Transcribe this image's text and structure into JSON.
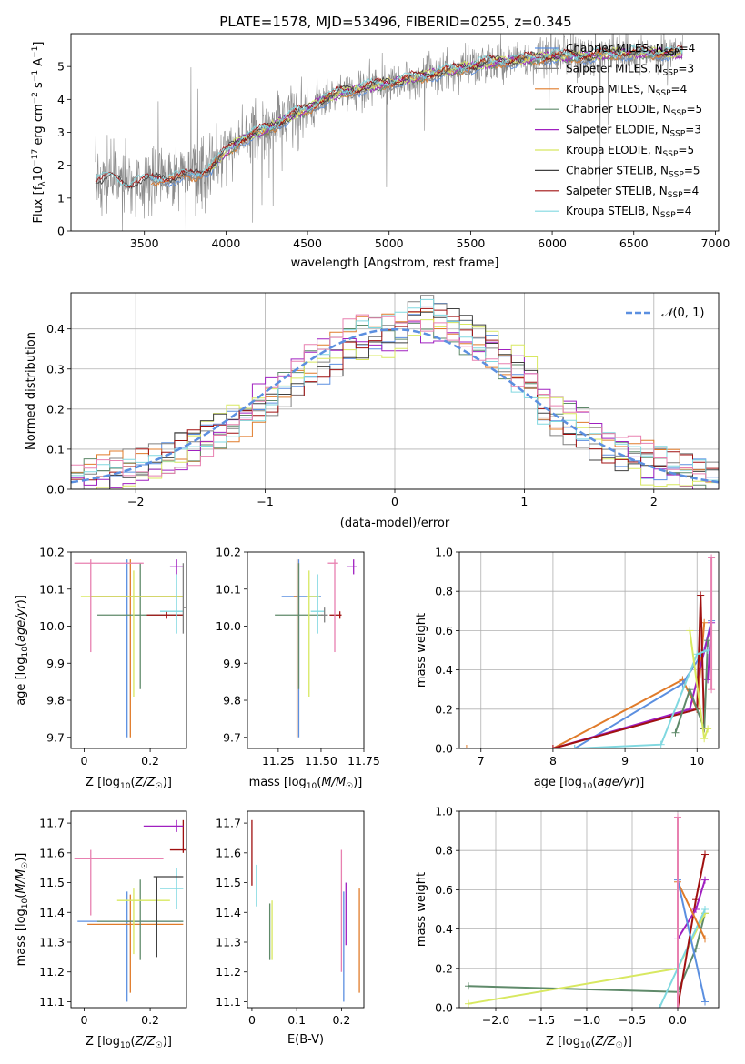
{
  "suptitle": "PLATE=1578, MJD=53496, FIBERID=0255, z=0.345",
  "colors": {
    "chab_miles": "#5b8fe0",
    "salp_miles": "#808080",
    "kroupa_miles": "#e07b2a",
    "chab_elodie": "#5f8a6a",
    "salp_elodie": "#a020c0",
    "kroupa_elodie": "#d8e860",
    "chab_stelib": "#404040",
    "salp_stelib": "#a01010",
    "kroupa_stelib": "#80d8e0",
    "normal_curve": "#5b8fe0",
    "pink": "#e880b0"
  },
  "chart_data": [
    {
      "id": "spectrum",
      "type": "line",
      "xlabel": "wavelength [Angstrom, rest frame]",
      "ylabel": "Flux [f_λ 10^-17 erg cm^-2 s^-1 A^-1]",
      "xlim": [
        3050,
        7020
      ],
      "ylim": [
        0,
        6
      ],
      "xticks": [
        3500,
        4000,
        4500,
        5000,
        5500,
        6000,
        6500,
        7000
      ],
      "yticks": [
        0,
        1,
        2,
        3,
        4,
        5
      ],
      "legend_position": "upper right",
      "legend": [
        "Chabrier MILES, N_SSP=4",
        "Salpeter MILES, N_SSP=3",
        "Kroupa MILES, N_SSP=4",
        "Chabrier ELODIE, N_SSP=5",
        "Salpeter ELODIE, N_SSP=3",
        "Kroupa ELODIE, N_SSP=5",
        "Chabrier STELIB, N_SSP=5",
        "Salpeter STELIB, N_SSP=4",
        "Kroupa STELIB, N_SSP=4"
      ],
      "continuum": {
        "x": [
          3200,
          3300,
          3400,
          3500,
          3600,
          3700,
          3800,
          3900,
          4000,
          4100,
          4200,
          4300,
          4400,
          4500,
          4600,
          4700,
          4800,
          4900,
          5000,
          5200,
          5400,
          5600,
          5800,
          6000,
          6200,
          6400,
          6600,
          6800
        ],
        "y": [
          1.5,
          1.6,
          1.4,
          1.5,
          1.6,
          1.6,
          1.7,
          1.9,
          2.4,
          2.8,
          3.0,
          3.2,
          3.5,
          3.7,
          4.0,
          4.2,
          4.3,
          4.4,
          4.5,
          4.7,
          4.9,
          5.1,
          5.2,
          5.3,
          5.3,
          5.4,
          5.4,
          5.4
        ]
      }
    },
    {
      "id": "residuals",
      "type": "line",
      "xlabel": "(data-model)/error",
      "ylabel": "Normed distribution",
      "xlim": [
        -2.5,
        2.5
      ],
      "ylim": [
        0,
        0.49
      ],
      "xticks": [
        -2,
        -1,
        0,
        1,
        2
      ],
      "yticks": [
        0.0,
        0.1,
        0.2,
        0.3,
        0.4
      ],
      "grid": true,
      "legend_position": "upper right",
      "legend": [
        "𝒩(0,1)"
      ],
      "curve": "standard normal pdf"
    },
    {
      "id": "z_age",
      "type": "scatter",
      "xlabel": "Z [log10(Z/Z☉)]",
      "ylabel": "age  [log10(age/yr)]",
      "xlim": [
        -0.04,
        0.31
      ],
      "ylim": [
        9.67,
        10.2
      ],
      "xticks": [
        0.0,
        0.2
      ],
      "yticks": [
        9.7,
        9.8,
        9.9,
        10.0,
        10.1,
        10.2
      ],
      "points": [
        {
          "x": 0.13,
          "y": 10.08,
          "color": "chab_miles"
        },
        {
          "x": 0.14,
          "y": 10.08,
          "color": "kroupa_miles"
        },
        {
          "x": 0.17,
          "y": 10.03,
          "color": "chab_elodie"
        },
        {
          "x": 0.15,
          "y": 10.08,
          "color": "kroupa_elodie"
        },
        {
          "x": 0.25,
          "y": 10.03,
          "color": "salp_stelib"
        },
        {
          "x": 0.28,
          "y": 10.16,
          "color": "salp_elodie"
        },
        {
          "x": 0.02,
          "y": 10.17,
          "color": "pink"
        },
        {
          "x": 0.28,
          "y": 10.04,
          "color": "kroupa_stelib"
        },
        {
          "x": 0.3,
          "y": 10.05,
          "color": "salp_miles"
        }
      ]
    },
    {
      "id": "mass_age",
      "type": "scatter",
      "xlabel": "mass [log10(M/M☉)]",
      "ylabel": "",
      "xlim": [
        11.07,
        11.75
      ],
      "ylim": [
        9.67,
        10.2
      ],
      "xticks": [
        11.25,
        11.5,
        11.75
      ],
      "xtick_labels": [
        "11.25",
        "11.50",
        "11.75"
      ],
      "yticks": [
        9.7,
        9.8,
        9.9,
        10.0,
        10.1,
        10.2
      ],
      "points": [
        {
          "x": 11.37,
          "y": 10.08,
          "color": "chab_miles"
        },
        {
          "x": 11.36,
          "y": 10.08,
          "color": "kroupa_miles"
        },
        {
          "x": 11.37,
          "y": 10.03,
          "color": "chab_elodie"
        },
        {
          "x": 11.43,
          "y": 10.08,
          "color": "kroupa_elodie"
        },
        {
          "x": 11.61,
          "y": 10.03,
          "color": "salp_stelib"
        },
        {
          "x": 11.69,
          "y": 10.16,
          "color": "salp_elodie"
        },
        {
          "x": 11.58,
          "y": 10.17,
          "color": "pink"
        },
        {
          "x": 11.48,
          "y": 10.04,
          "color": "kroupa_stelib"
        },
        {
          "x": 11.52,
          "y": 10.03,
          "color": "salp_miles"
        }
      ]
    },
    {
      "id": "age_weight",
      "type": "line",
      "xlabel": "age  [log10(age/yr)]",
      "ylabel": "mass weight",
      "xlim": [
        6.7,
        10.3
      ],
      "ylim": [
        0,
        1.0
      ],
      "xticks": [
        7,
        8,
        9,
        10
      ],
      "yticks": [
        0.0,
        0.2,
        0.4,
        0.6,
        0.8,
        1.0
      ],
      "grid": true,
      "series": [
        {
          "color": "kroupa_miles",
          "x": [
            6.8,
            8.0,
            9.8,
            10.0,
            10.1
          ],
          "y": [
            0.0,
            0.0,
            0.35,
            0.2,
            0.64
          ]
        },
        {
          "color": "chab_miles",
          "x": [
            8.3,
            9.8,
            10.1,
            10.2
          ],
          "y": [
            0.0,
            0.33,
            0.5,
            0.65
          ]
        },
        {
          "color": "salp_elodie",
          "x": [
            8.0,
            9.9,
            10.2,
            10.15
          ],
          "y": [
            0.0,
            0.2,
            0.64,
            0.35
          ]
        },
        {
          "color": "salp_stelib",
          "x": [
            8.0,
            10.0,
            10.05,
            10.1
          ],
          "y": [
            0.0,
            0.2,
            0.78,
            0.1
          ]
        },
        {
          "color": "chab_elodie",
          "x": [
            9.7,
            9.9,
            10.1,
            10.15
          ],
          "y": [
            0.08,
            0.3,
            0.1,
            0.55
          ]
        },
        {
          "color": "kroupa_stelib",
          "x": [
            8.3,
            9.5,
            10.0,
            10.15
          ],
          "y": [
            0.0,
            0.02,
            0.48,
            0.5
          ]
        },
        {
          "color": "kroupa_elodie",
          "x": [
            9.9,
            10.1,
            10.15
          ],
          "y": [
            0.6,
            0.05,
            0.1
          ]
        },
        {
          "color": "pink",
          "x": [
            10.2,
            10.2
          ],
          "y": [
            0.3,
            0.97
          ]
        }
      ]
    },
    {
      "id": "z_mass",
      "type": "scatter",
      "xlabel": "Z [log10(Z/Z☉)]",
      "ylabel": "mass [log10(M/M☉)]",
      "xlim": [
        -0.04,
        0.31
      ],
      "ylim": [
        11.08,
        11.74
      ],
      "xticks": [
        0.0,
        0.2
      ],
      "yticks": [
        11.1,
        11.2,
        11.3,
        11.4,
        11.5,
        11.6,
        11.7
      ],
      "points": [
        {
          "x": 0.13,
          "y": 11.37,
          "color": "chab_miles"
        },
        {
          "x": 0.14,
          "y": 11.36,
          "color": "kroupa_miles"
        },
        {
          "x": 0.17,
          "y": 11.37,
          "color": "chab_elodie"
        },
        {
          "x": 0.15,
          "y": 11.44,
          "color": "kroupa_elodie"
        },
        {
          "x": 0.3,
          "y": 11.61,
          "color": "salp_stelib"
        },
        {
          "x": 0.28,
          "y": 11.69,
          "color": "salp_elodie"
        },
        {
          "x": 0.02,
          "y": 11.58,
          "color": "pink"
        },
        {
          "x": 0.28,
          "y": 11.48,
          "color": "kroupa_stelib"
        },
        {
          "x": 0.22,
          "y": 11.52,
          "color": "chab_stelib"
        }
      ]
    },
    {
      "id": "ebv_mass",
      "type": "scatter",
      "xlabel": "E(B-V)",
      "ylabel": "",
      "xlim": [
        -0.01,
        0.25
      ],
      "ylim": [
        11.08,
        11.74
      ],
      "xticks": [
        0.0,
        0.1,
        0.2
      ],
      "yticks": [
        11.1,
        11.2,
        11.3,
        11.4,
        11.5,
        11.6,
        11.7
      ],
      "points": [
        {
          "x": 0.0,
          "y": 11.61,
          "color": "salp_stelib"
        },
        {
          "x": 0.01,
          "y": 11.49,
          "color": "kroupa_stelib"
        },
        {
          "x": 0.04,
          "y": 11.37,
          "color": "chab_elodie"
        },
        {
          "x": 0.045,
          "y": 11.37,
          "color": "kroupa_elodie"
        },
        {
          "x": 0.2,
          "y": 11.4,
          "color": "pink"
        },
        {
          "x": 0.205,
          "y": 11.37,
          "color": "chab_miles"
        },
        {
          "x": 0.21,
          "y": 11.4,
          "color": "salp_elodie"
        },
        {
          "x": 0.24,
          "y": 11.3,
          "color": "kroupa_miles"
        }
      ]
    },
    {
      "id": "z_weight",
      "type": "line",
      "xlabel": "Z [log10(Z/Z☉)]",
      "ylabel": "mass weight",
      "xlim": [
        -2.4,
        0.45
      ],
      "ylim": [
        0,
        1.0
      ],
      "xticks": [
        -2.0,
        -1.5,
        -1.0,
        -0.5,
        0.0
      ],
      "yticks": [
        0.0,
        0.2,
        0.4,
        0.6,
        0.8,
        1.0
      ],
      "grid": true,
      "series": [
        {
          "color": "chab_elodie",
          "x": [
            -2.3,
            0.0,
            0.2,
            0.3
          ],
          "y": [
            0.11,
            0.08,
            0.3,
            0.48
          ]
        },
        {
          "color": "kroupa_elodie",
          "x": [
            -2.3,
            0.0,
            0.3
          ],
          "y": [
            0.02,
            0.2,
            0.48
          ]
        },
        {
          "color": "kroupa_stelib",
          "x": [
            -0.2,
            0.0,
            0.3
          ],
          "y": [
            0.0,
            0.2,
            0.5
          ]
        },
        {
          "color": "salp_stelib",
          "x": [
            0.0,
            0.2,
            0.3
          ],
          "y": [
            0.0,
            0.55,
            0.78
          ]
        },
        {
          "color": "salp_elodie",
          "x": [
            0.0,
            0.2,
            0.3
          ],
          "y": [
            0.35,
            0.5,
            0.65
          ]
        },
        {
          "color": "kroupa_miles",
          "x": [
            0.0,
            0.0,
            0.3
          ],
          "y": [
            0.0,
            0.64,
            0.35
          ]
        },
        {
          "color": "chab_miles",
          "x": [
            0.0,
            0.3
          ],
          "y": [
            0.65,
            0.03
          ]
        },
        {
          "color": "pink",
          "x": [
            0.0,
            0.0
          ],
          "y": [
            0.0,
            0.97
          ]
        }
      ]
    }
  ]
}
